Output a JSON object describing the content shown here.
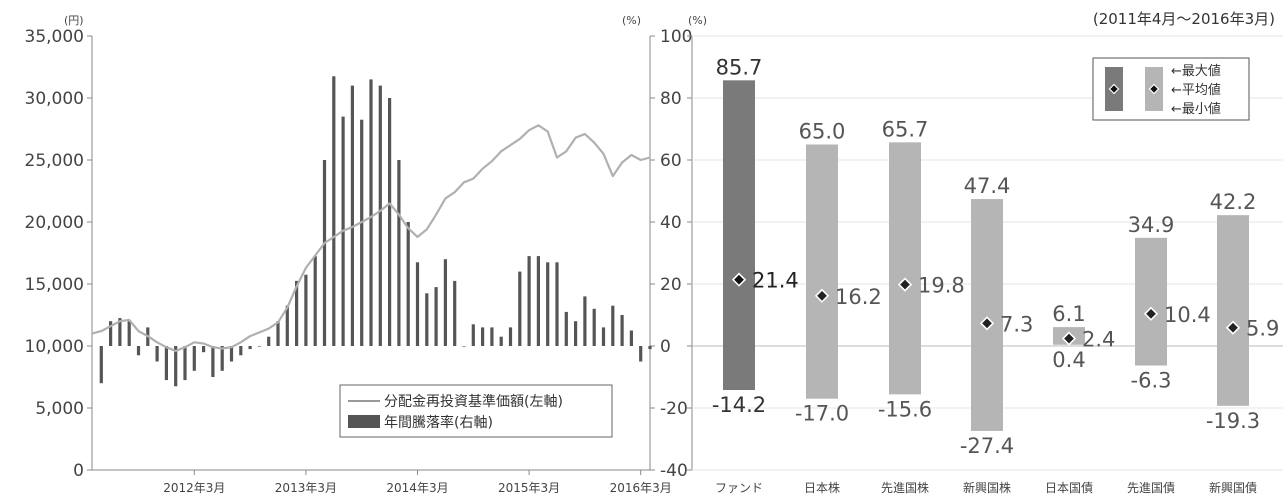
{
  "chart_data": [
    {
      "type": "line+bar",
      "left_unit": "(円)",
      "right_unit": "(%)",
      "yleft_ticks": [
        "0",
        "5,000",
        "10,000",
        "15,000",
        "20,000",
        "25,000",
        "30,000",
        "35,000"
      ],
      "yleft_lim": [
        0,
        35000
      ],
      "yright_ticks": [
        "-40",
        "-20",
        "0",
        "20",
        "40",
        "60",
        "80",
        "100"
      ],
      "yright_lim": [
        -40,
        100
      ],
      "x_ticks": [
        "2012年3月",
        "2013年3月",
        "2014年3月",
        "2015年3月",
        "2016年3月"
      ],
      "x_lim": [
        0,
        60
      ],
      "x_tick_positions": [
        11,
        23,
        35,
        47,
        59
      ],
      "legend": {
        "line": "分配金再投資基準価額(左軸)",
        "bars": "年間騰落率(右軸)"
      },
      "line_series": {
        "name": "分配金再投資基準価額(左軸)",
        "x": [
          0,
          1,
          2,
          3,
          4,
          5,
          6,
          7,
          8,
          9,
          10,
          11,
          12,
          13,
          14,
          15,
          16,
          17,
          18,
          19,
          20,
          21,
          22,
          23,
          24,
          25,
          26,
          27,
          28,
          29,
          30,
          31,
          32,
          33,
          34,
          35,
          36,
          37,
          38,
          39,
          40,
          41,
          42,
          43,
          44,
          45,
          46,
          47,
          48,
          49,
          50,
          51,
          52,
          53,
          54,
          55,
          56,
          57,
          58,
          59,
          60
        ],
        "values": [
          11000,
          11200,
          11600,
          12000,
          12100,
          11200,
          10800,
          10300,
          9900,
          9600,
          9900,
          10300,
          10200,
          9900,
          9800,
          9900,
          10300,
          10800,
          11100,
          11400,
          11900,
          13100,
          14800,
          16300,
          17300,
          18300,
          18800,
          19300,
          19600,
          20000,
          20400,
          20900,
          21500,
          20600,
          19500,
          18800,
          19400,
          20600,
          21900,
          22400,
          23200,
          23500,
          24300,
          24900,
          25700,
          26200,
          26700,
          27400,
          27800,
          27300,
          25200,
          25700,
          26800,
          27100,
          26400,
          25500,
          23700,
          24800,
          25400,
          25000,
          25200
        ]
      },
      "bar_series": {
        "name": "年間騰落率(右軸)",
        "x": [
          1,
          2,
          3,
          4,
          5,
          6,
          7,
          8,
          9,
          10,
          11,
          12,
          13,
          14,
          15,
          16,
          17,
          18,
          19,
          20,
          21,
          22,
          23,
          24,
          25,
          26,
          27,
          28,
          29,
          30,
          31,
          32,
          33,
          34,
          35,
          36,
          37,
          38,
          39,
          40,
          41,
          42,
          43,
          44,
          45,
          46,
          47,
          48,
          49,
          50,
          51,
          52,
          53,
          54,
          55,
          56,
          57,
          58,
          59,
          60
        ],
        "values": [
          -12,
          8,
          9,
          8,
          -3,
          6,
          -5,
          -11,
          -13,
          -11,
          -8,
          -2,
          -10,
          -8,
          -5,
          -3,
          -1,
          0,
          3,
          8,
          13,
          21,
          23,
          29,
          60,
          87,
          74,
          84,
          73,
          86,
          84,
          80,
          60,
          40,
          27,
          17,
          19,
          28,
          21,
          0,
          7,
          6,
          6,
          3,
          6,
          24,
          29,
          29,
          27,
          27,
          11,
          8,
          16,
          12,
          6,
          13,
          10,
          5,
          -5,
          -1
        ]
      }
    },
    {
      "type": "range-bar",
      "period": "(2011年4月～2016年3月)",
      "unit": "(%)",
      "y_ticks": [
        "-40",
        "-20",
        "0",
        "20",
        "40",
        "60",
        "80",
        "100"
      ],
      "ylim": [
        -40,
        100
      ],
      "legend": {
        "max": "←最大値",
        "avg": "←平均値",
        "min": "←最小値"
      },
      "categories": [
        "ファンド",
        "日本株",
        "先進国株",
        "新興国株",
        "日本国債",
        "先進国債",
        "新興国債"
      ],
      "max": [
        85.7,
        65.0,
        65.7,
        47.4,
        6.1,
        34.9,
        42.2
      ],
      "avg": [
        21.4,
        16.2,
        19.8,
        7.3,
        2.4,
        10.4,
        5.9
      ],
      "min": [
        -14.2,
        -17.0,
        -15.6,
        -27.4,
        0.4,
        -6.3,
        -19.3
      ],
      "max_labels": [
        "85.7",
        "65.0",
        "65.7",
        "47.4",
        "6.1",
        "34.9",
        "42.2"
      ],
      "avg_labels": [
        "21.4",
        "16.2",
        "19.8",
        "7.3",
        "2.4",
        "10.4",
        "5.9"
      ],
      "min_labels": [
        "-14.2",
        "-17.0",
        "-15.6",
        "-27.4",
        "0.4",
        "-6.3",
        "-19.3"
      ],
      "colors": {
        "fund": "#7a7a7a",
        "others": "#b5b5b5",
        "line": "#b0b0b0",
        "bars": "#555555"
      }
    }
  ]
}
